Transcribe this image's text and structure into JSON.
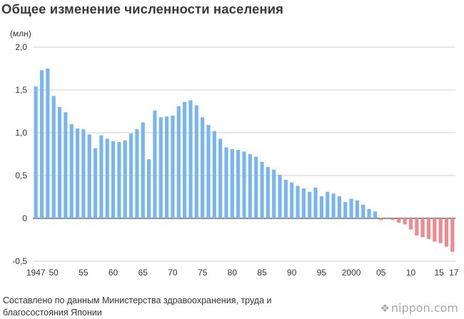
{
  "title": "Общее изменение численности населения",
  "brand": {
    "icon": "nippon-logo-icon",
    "text": "nippon.com"
  },
  "source_lines": [
    "Составлено по данным Министерства здравоохранения, труда и",
    "благосостояния Японии"
  ],
  "chart_data": {
    "type": "bar",
    "title": "Общее изменение численности населения",
    "ylabel": "(млн)",
    "xlabel": "",
    "ylim": [
      -0.5,
      2.0
    ],
    "yticks": [
      {
        "value": 2.0,
        "label": "2,0"
      },
      {
        "value": 1.5,
        "label": "1,5"
      },
      {
        "value": 1.0,
        "label": "1,0"
      },
      {
        "value": 0.5,
        "label": "0,5"
      },
      {
        "value": 0,
        "label": "0"
      },
      {
        "value": -0.5,
        "label": "-0,5"
      }
    ],
    "xtick_labels": [
      {
        "year": 1947,
        "label": "1947"
      },
      {
        "year": 1950,
        "label": "50"
      },
      {
        "year": 1955,
        "label": "55"
      },
      {
        "year": 1960,
        "label": "60"
      },
      {
        "year": 1965,
        "label": "65"
      },
      {
        "year": 1970,
        "label": "70"
      },
      {
        "year": 1975,
        "label": "75"
      },
      {
        "year": 1980,
        "label": "80"
      },
      {
        "year": 1985,
        "label": "85"
      },
      {
        "year": 1990,
        "label": "90"
      },
      {
        "year": 1995,
        "label": "95"
      },
      {
        "year": 2000,
        "label": "2000"
      },
      {
        "year": 2005,
        "label": "05"
      },
      {
        "year": 2010,
        "label": "10"
      },
      {
        "year": 2015,
        "label": "15"
      },
      {
        "year": 2017,
        "label": "17"
      }
    ],
    "grid": true,
    "colors": {
      "positive": "#79b6ee",
      "negative": "#f08a8f",
      "grid": "#cfcfcf",
      "zero_line": "#444444"
    },
    "years": [
      1947,
      1948,
      1949,
      1950,
      1951,
      1952,
      1953,
      1954,
      1955,
      1956,
      1957,
      1958,
      1959,
      1960,
      1961,
      1962,
      1963,
      1964,
      1965,
      1966,
      1967,
      1968,
      1969,
      1970,
      1971,
      1972,
      1973,
      1974,
      1975,
      1976,
      1977,
      1978,
      1979,
      1980,
      1981,
      1982,
      1983,
      1984,
      1985,
      1986,
      1987,
      1988,
      1989,
      1990,
      1991,
      1992,
      1993,
      1994,
      1995,
      1996,
      1997,
      1998,
      1999,
      2000,
      2001,
      2002,
      2003,
      2004,
      2005,
      2006,
      2007,
      2008,
      2009,
      2010,
      2011,
      2012,
      2013,
      2014,
      2015,
      2016,
      2017
    ],
    "values": [
      1.54,
      1.73,
      1.75,
      1.43,
      1.3,
      1.24,
      1.1,
      1.05,
      1.04,
      0.98,
      0.82,
      0.97,
      0.93,
      0.9,
      0.89,
      0.91,
      0.99,
      1.04,
      1.12,
      0.69,
      1.26,
      1.18,
      1.19,
      1.2,
      1.31,
      1.36,
      1.38,
      1.32,
      1.18,
      1.09,
      1.02,
      0.93,
      0.83,
      0.81,
      0.8,
      0.78,
      0.75,
      0.72,
      0.66,
      0.6,
      0.57,
      0.51,
      0.45,
      0.42,
      0.38,
      0.35,
      0.31,
      0.36,
      0.26,
      0.31,
      0.29,
      0.26,
      0.19,
      0.23,
      0.21,
      0.16,
      0.11,
      0.08,
      -0.02,
      0.01,
      -0.02,
      -0.05,
      -0.07,
      -0.13,
      -0.2,
      -0.22,
      -0.24,
      -0.27,
      -0.29,
      -0.33,
      -0.39
    ]
  }
}
